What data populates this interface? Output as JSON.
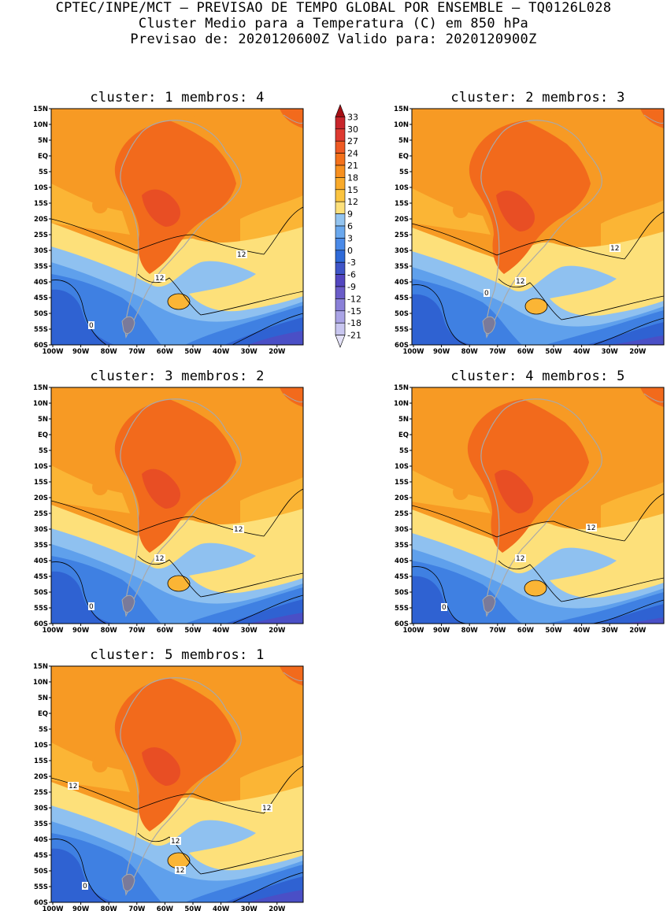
{
  "header": {
    "line1": "CPTEC/INPE/MCT – PREVISAO DE TEMPO GLOBAL POR ENSEMBLE – TQ0126L028",
    "line2": "Cluster Medio para a Temperatura (C) em 850 hPa",
    "line3": "Previsao de: 2020120600Z    Valido para: 2020120900Z"
  },
  "axes": {
    "lat_labels": [
      "15N",
      "10N",
      "5N",
      "EQ",
      "5S",
      "10S",
      "15S",
      "20S",
      "25S",
      "30S",
      "35S",
      "40S",
      "45S",
      "50S",
      "55S",
      "60S"
    ],
    "lon_labels": [
      "100W",
      "90W",
      "80W",
      "70W",
      "60W",
      "50W",
      "40W",
      "30W",
      "20W"
    ]
  },
  "panels": [
    {
      "id": "c1",
      "title": "cluster: 1   membros: 4",
      "contour_labels": [
        "12",
        "12",
        "0"
      ]
    },
    {
      "id": "c2",
      "title": "cluster: 2   membros: 3",
      "contour_labels": [
        "12",
        "12",
        "0"
      ]
    },
    {
      "id": "c3",
      "title": "cluster: 3   membros: 2",
      "contour_labels": [
        "12",
        "12",
        "0"
      ]
    },
    {
      "id": "c4",
      "title": "cluster: 4   membros: 5",
      "contour_labels": [
        "12",
        "12",
        "0"
      ]
    },
    {
      "id": "c5",
      "title": "cluster: 5   membros: 1",
      "contour_labels": [
        "12",
        "12",
        "12",
        "12",
        "0"
      ]
    }
  ],
  "colorbar": {
    "labels": [
      "33",
      "30",
      "27",
      "24",
      "21",
      "18",
      "15",
      "12",
      "9",
      "6",
      "3",
      "0",
      "-3",
      "-6",
      "-9",
      "-12",
      "-15",
      "-18",
      "-21"
    ],
    "colors": [
      "#a50f15",
      "#c8262c",
      "#de3a31",
      "#ee5a24",
      "#f4711b",
      "#f7901f",
      "#f9aa2a",
      "#fbc440",
      "#fde07a",
      "#93c4f0",
      "#6aa8ee",
      "#4a8ae8",
      "#2f6ad8",
      "#3f55c8",
      "#5346c0",
      "#6a5cc8",
      "#8a80d8",
      "#aaa4e6",
      "#c8c6f0",
      "#e4e2f8"
    ]
  },
  "palette": {
    "t_ge21": "#e84e24",
    "t_18_21": "#f26a1c",
    "t_15_18": "#f79a24",
    "t_12_15": "#fbb535",
    "t_9_12": "#fde07a",
    "t_6_9": "#8fc1f0",
    "t_3_6": "#5fa0ec",
    "t_0_3": "#3f80e2",
    "t_m3_0": "#2f62d2",
    "t_m6_m3": "#4a4fc6",
    "t_m9_m6": "#6a5ccc",
    "coast": "#a9a9a9",
    "contour": "#000000"
  }
}
